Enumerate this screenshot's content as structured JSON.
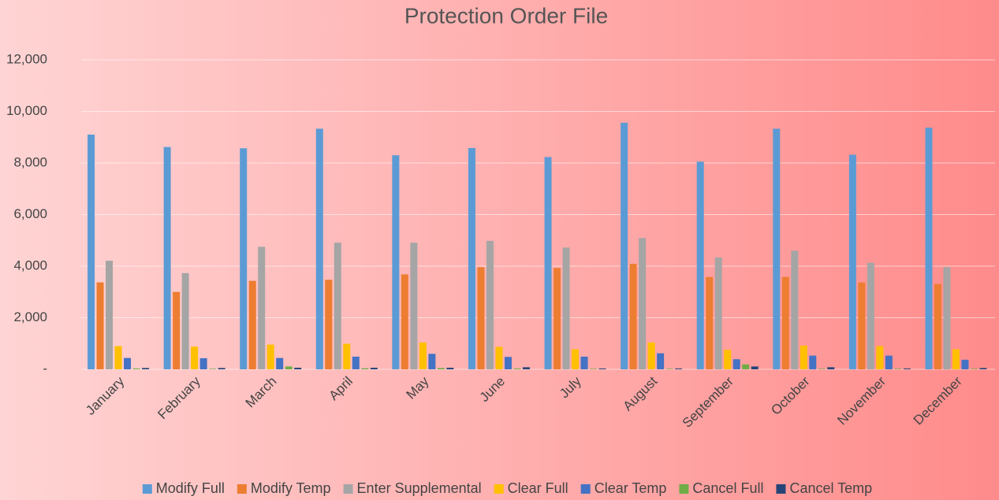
{
  "chart_data": {
    "type": "bar",
    "title": "Protection Order File",
    "categories": [
      "January",
      "February",
      "March",
      "April",
      "May",
      "June",
      "July",
      "August",
      "September",
      "October",
      "November",
      "December"
    ],
    "series": [
      {
        "name": "Modify Full",
        "color": "#5b9bd5",
        "values": [
          9100,
          8620,
          8570,
          9330,
          8300,
          8580,
          8230,
          9560,
          8050,
          9330,
          8320,
          9370
        ]
      },
      {
        "name": "Modify Temp",
        "color": "#ed7d31",
        "values": [
          3370,
          3000,
          3430,
          3470,
          3680,
          3960,
          3930,
          4090,
          3580,
          3580,
          3370,
          3310
        ]
      },
      {
        "name": "Enter Supplemental",
        "color": "#a5a5a5",
        "values": [
          4210,
          3730,
          4750,
          4910,
          4910,
          4980,
          4720,
          5090,
          4340,
          4600,
          4130,
          3960
        ]
      },
      {
        "name": "Clear Full",
        "color": "#ffc000",
        "values": [
          900,
          880,
          960,
          990,
          1040,
          870,
          780,
          1040,
          760,
          920,
          900,
          780
        ]
      },
      {
        "name": "Clear Temp",
        "color": "#4472c4",
        "values": [
          440,
          430,
          440,
          490,
          600,
          480,
          490,
          620,
          390,
          530,
          530,
          370
        ]
      },
      {
        "name": "Cancel Full",
        "color": "#70ad47",
        "values": [
          30,
          20,
          110,
          40,
          50,
          30,
          20,
          20,
          190,
          20,
          20,
          20
        ]
      },
      {
        "name": "Cancel Temp",
        "color": "#264478",
        "values": [
          50,
          50,
          60,
          60,
          60,
          80,
          30,
          30,
          110,
          80,
          30,
          50
        ]
      }
    ],
    "ylim": [
      0,
      12000
    ],
    "yticks": [
      {
        "value": 0,
        "label": "-"
      },
      {
        "value": 2000,
        "label": "2,000"
      },
      {
        "value": 4000,
        "label": "4,000"
      },
      {
        "value": 6000,
        "label": "6,000"
      },
      {
        "value": 8000,
        "label": "8,000"
      },
      {
        "value": 10000,
        "label": "10,000"
      },
      {
        "value": 12000,
        "label": "12,000"
      }
    ],
    "grid": true,
    "legend": "bottom"
  }
}
